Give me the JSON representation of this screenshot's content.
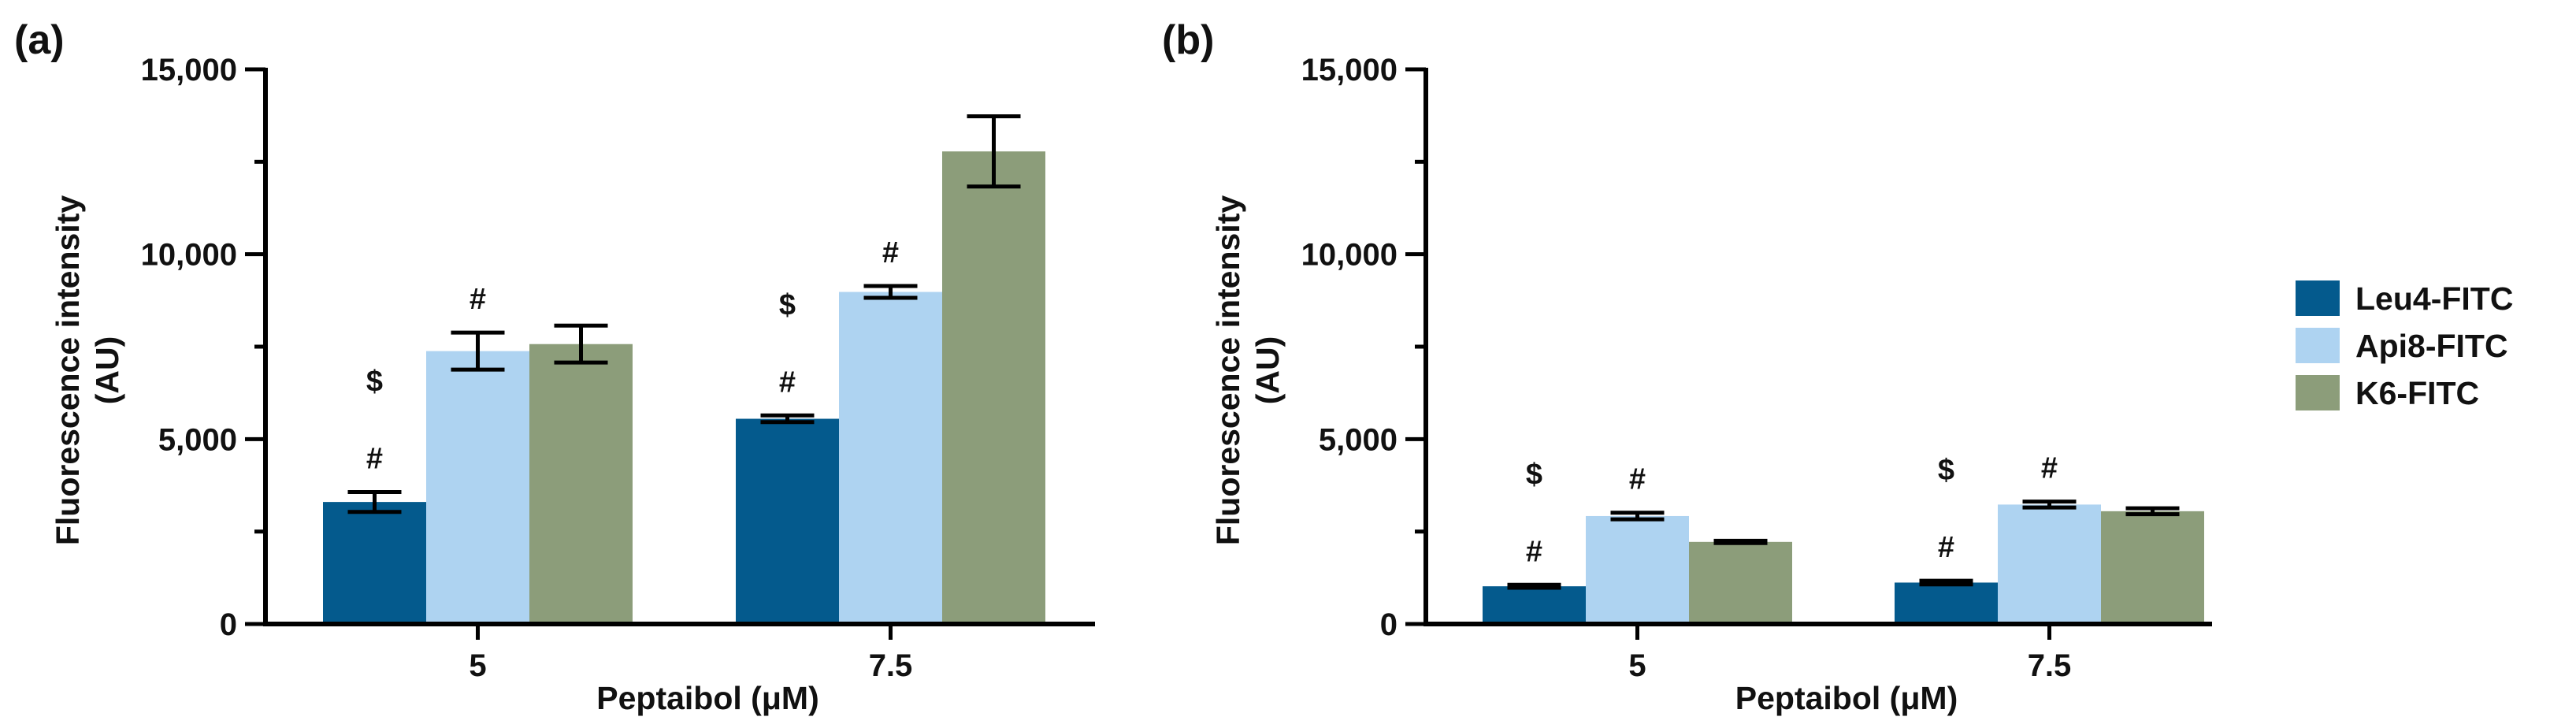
{
  "chart_data": [
    {
      "type": "bar",
      "panel_label": "(a)",
      "categories": [
        "5",
        "7.5"
      ],
      "series": [
        {
          "name": "Leu4-FITC",
          "color": "#045A8D",
          "values": [
            3300,
            5550
          ],
          "errors": [
            270,
            90
          ],
          "annotations": [
            [
              "#",
              "$"
            ],
            [
              "#",
              "$"
            ]
          ]
        },
        {
          "name": "Api8-FITC",
          "color": "#AED3F1",
          "values": [
            7380,
            8980
          ],
          "errors": [
            500,
            160
          ],
          "annotations": [
            [
              "#"
            ],
            [
              "#"
            ]
          ]
        },
        {
          "name": "K6-FITC",
          "color": "#8C9D7A",
          "values": [
            7570,
            12780
          ],
          "errors": [
            500,
            950
          ],
          "annotations": [
            [],
            []
          ]
        }
      ],
      "xlabel": "Peptaibol (μM)",
      "ylabel": [
        "Fluorescence intensity",
        "(AU)"
      ],
      "ylim": [
        0,
        15000
      ],
      "yticks": [
        0,
        5000,
        10000,
        15000
      ],
      "ytick_labels": [
        "0",
        "5,000",
        "10,000",
        "15,000"
      ]
    },
    {
      "type": "bar",
      "panel_label": "(b)",
      "categories": [
        "5",
        "7.5"
      ],
      "series": [
        {
          "name": "Leu4-FITC",
          "color": "#045A8D",
          "values": [
            1020,
            1120
          ],
          "errors": [
            40,
            50
          ],
          "annotations": [
            [
              "#",
              "$"
            ],
            [
              "#",
              "$"
            ]
          ]
        },
        {
          "name": "Api8-FITC",
          "color": "#AED3F1",
          "values": [
            2920,
            3230
          ],
          "errors": [
            90,
            80
          ],
          "annotations": [
            [
              "#"
            ],
            [
              "#"
            ]
          ]
        },
        {
          "name": "K6-FITC",
          "color": "#8C9D7A",
          "values": [
            2220,
            3050
          ],
          "errors": [
            30,
            80
          ],
          "annotations": [
            [],
            []
          ]
        }
      ],
      "xlabel": "Peptaibol (μM)",
      "ylabel": [
        "Fluorescence intensity",
        "(AU)"
      ],
      "ylim": [
        0,
        15000
      ],
      "yticks": [
        0,
        5000,
        10000,
        15000
      ],
      "ytick_labels": [
        "0",
        "5,000",
        "10,000",
        "15,000"
      ]
    }
  ],
  "legend": {
    "position": "right",
    "entries": [
      {
        "name": "Leu4-FITC",
        "color": "#045A8D"
      },
      {
        "name": "Api8-FITC",
        "color": "#AED3F1"
      },
      {
        "name": "K6-FITC",
        "color": "#8C9D7A"
      }
    ]
  }
}
